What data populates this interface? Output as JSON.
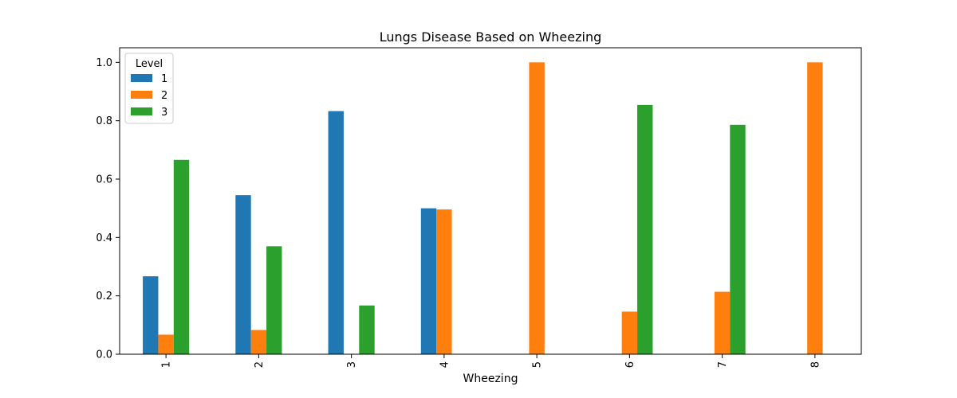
{
  "chart_data": {
    "type": "bar",
    "title": "Lungs Disease Based on Wheezing",
    "xlabel": "Wheezing",
    "ylabel": "",
    "categories": [
      "1",
      "2",
      "3",
      "4",
      "5",
      "6",
      "7",
      "8"
    ],
    "ylim": [
      0,
      1.05
    ],
    "yticks": [
      "0.0",
      "0.2",
      "0.4",
      "0.6",
      "0.8",
      "1.0"
    ],
    "legend": {
      "title": "Level",
      "position": "upper-left"
    },
    "grid": false,
    "series": [
      {
        "name": "1",
        "color": "#1f77b4",
        "values": [
          0.267,
          0.545,
          0.833,
          0.5,
          0,
          0,
          0,
          0
        ]
      },
      {
        "name": "2",
        "color": "#ff7f0e",
        "values": [
          0.067,
          0.083,
          0,
          0.496,
          1.0,
          0.146,
          0.214,
          1.0
        ]
      },
      {
        "name": "3",
        "color": "#2ca02c",
        "values": [
          0.666,
          0.37,
          0.167,
          0,
          0,
          0.854,
          0.786,
          0
        ]
      }
    ]
  }
}
